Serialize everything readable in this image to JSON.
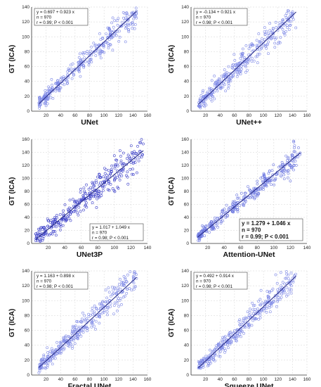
{
  "chart_data": [
    {
      "type": "scatter",
      "title": "",
      "xlabel": "UNet",
      "ylabel": "GT (ICA)",
      "xlim": [
        0,
        160
      ],
      "ylim": [
        0,
        140
      ],
      "xticks": [
        "20",
        "40",
        "60",
        "80",
        "100",
        "120",
        "140",
        "160"
      ],
      "yticks": [
        "0",
        "20",
        "40",
        "60",
        "80",
        "100",
        "120",
        "140"
      ],
      "regression": {
        "intercept": 0.697,
        "slope": 0.923
      },
      "stats": {
        "line1": "y = 0.697  +  0.923  x",
        "line2": "n = 970",
        "line3": "r = 0.99; P < 0.001"
      },
      "stats_position": "top-left",
      "point_color": "#7d88e6",
      "line_color": "#2a2f8a",
      "x_range": [
        10,
        145
      ],
      "noise": 7
    },
    {
      "type": "scatter",
      "title": "",
      "xlabel": "UNet++",
      "ylabel": "GT (ICA)",
      "xlim": [
        0,
        160
      ],
      "ylim": [
        0,
        140
      ],
      "xticks": [
        "20",
        "40",
        "60",
        "80",
        "100",
        "120",
        "140",
        "160"
      ],
      "yticks": [
        "0",
        "20",
        "40",
        "60",
        "80",
        "100",
        "120",
        "140"
      ],
      "regression": {
        "intercept": -0.134,
        "slope": 0.921
      },
      "stats": {
        "line1": "y = -0.134  +  0.921  x",
        "line2": "n = 970",
        "line3": "r = 0.98; P < 0.001"
      },
      "stats_position": "top-left",
      "point_color": "#7d88e6",
      "line_color": "#2a2f8a",
      "x_range": [
        10,
        145
      ],
      "noise": 8
    },
    {
      "type": "scatter",
      "title": "",
      "xlabel": "UNet3P",
      "ylabel": "GT (ICA)",
      "xlim": [
        0,
        140
      ],
      "ylim": [
        0,
        160
      ],
      "xticks": [
        "20",
        "40",
        "60",
        "80",
        "100",
        "120",
        "140"
      ],
      "yticks": [
        "0",
        "20",
        "40",
        "60",
        "80",
        "100",
        "120",
        "140",
        "160"
      ],
      "regression": {
        "intercept": 1.017,
        "slope": 1.049
      },
      "stats": {
        "line1": "y = 1.017  +  1.049  x",
        "line2": "n = 970",
        "line3": "r = 0.98; P < 0.001"
      },
      "stats_position": "bottom-right",
      "point_color": "#3b3fc9",
      "line_color": "#2a2f8a",
      "x_range": [
        5,
        135
      ],
      "noise": 10
    },
    {
      "type": "scatter",
      "title": "",
      "xlabel": "Attention-UNet",
      "ylabel": "GT (ICA)",
      "xlim": [
        0,
        140
      ],
      "ylim": [
        0,
        160
      ],
      "xticks": [
        "20",
        "40",
        "60",
        "80",
        "100",
        "120",
        "140"
      ],
      "yticks": [
        "0",
        "20",
        "40",
        "60",
        "80",
        "100",
        "120",
        "140",
        "160"
      ],
      "regression": {
        "intercept": 1.279,
        "slope": 1.046
      },
      "stats": {
        "line1": "y = 1.279  +  1.046  x",
        "line2": "n = 970",
        "line3": "r = 0.99; P < 0.001"
      },
      "stats_position": "bottom-right",
      "stats_bold": true,
      "point_color": "#6d78e0",
      "line_color": "#2a2f8a",
      "x_range": [
        8,
        132
      ],
      "noise": 7
    },
    {
      "type": "scatter",
      "title": "",
      "xlabel": "Fractal UNet",
      "ylabel": "GT (ICA)",
      "xlim": [
        0,
        160
      ],
      "ylim": [
        0,
        140
      ],
      "xticks": [
        "20",
        "40",
        "60",
        "80",
        "100",
        "120",
        "140",
        "160"
      ],
      "yticks": [
        "0",
        "20",
        "40",
        "60",
        "80",
        "100",
        "120",
        "140"
      ],
      "regression": {
        "intercept": 1.163,
        "slope": 0.898
      },
      "stats": {
        "line1": "y = 1.163  +  0.898  x",
        "line2": "n = 970",
        "line3": "r = 0.98; P < 0.001"
      },
      "stats_position": "top-left",
      "point_color": "#7d88e6",
      "line_color": "#2a2f8a",
      "x_range": [
        10,
        145
      ],
      "noise": 8
    },
    {
      "type": "scatter",
      "title": "",
      "xlabel": "Squeeze UNet",
      "ylabel": "GT (ICA)",
      "xlim": [
        0,
        160
      ],
      "ylim": [
        0,
        140
      ],
      "xticks": [
        "20",
        "40",
        "60",
        "80",
        "100",
        "120",
        "140",
        "160"
      ],
      "yticks": [
        "0",
        "20",
        "40",
        "60",
        "80",
        "100",
        "120",
        "140"
      ],
      "regression": {
        "intercept": 0.492,
        "slope": 0.914
      },
      "stats": {
        "line1": "y = 0.492  +  0.914  x",
        "line2": "n = 970",
        "line3": "r = 0.98; P < 0.001"
      },
      "stats_position": "top-left",
      "point_color": "#7d88e6",
      "line_color": "#2a2f8a",
      "x_range": [
        10,
        145
      ],
      "noise": 7
    }
  ]
}
